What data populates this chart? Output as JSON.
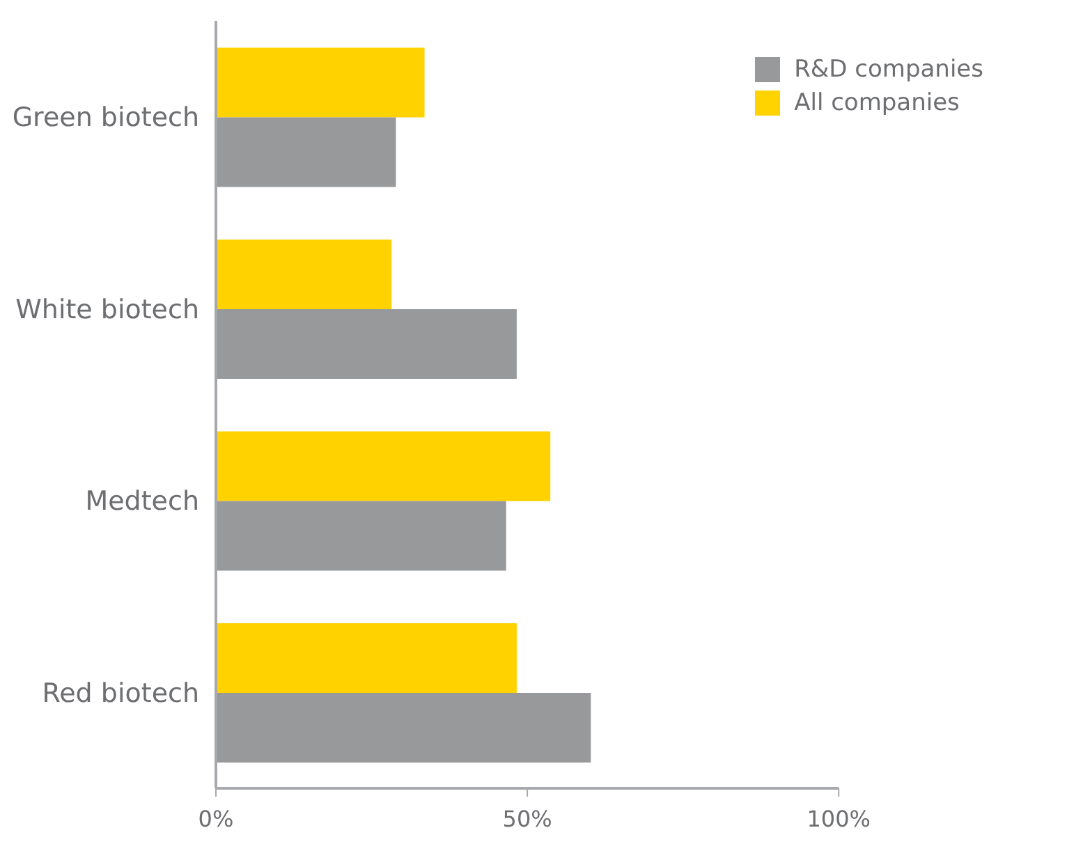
{
  "chart_data": {
    "type": "bar",
    "orientation": "horizontal",
    "categories": [
      "Green biotech",
      "White biotech",
      "Medtech",
      "Red biotech"
    ],
    "series": [
      {
        "name": "R&D companies",
        "color": "#98999b",
        "values": [
          28.9,
          48.3,
          46.6,
          60.2
        ]
      },
      {
        "name": "All companies",
        "color": "#ffd200",
        "values": [
          33.5,
          28.2,
          53.7,
          48.3
        ]
      }
    ],
    "xlim": [
      0,
      100
    ],
    "xticks": [
      {
        "value": 0,
        "label": "0%"
      },
      {
        "value": 50,
        "label": "50%"
      },
      {
        "value": 100,
        "label": "100%"
      }
    ],
    "grid": false,
    "legend": "top right"
  }
}
